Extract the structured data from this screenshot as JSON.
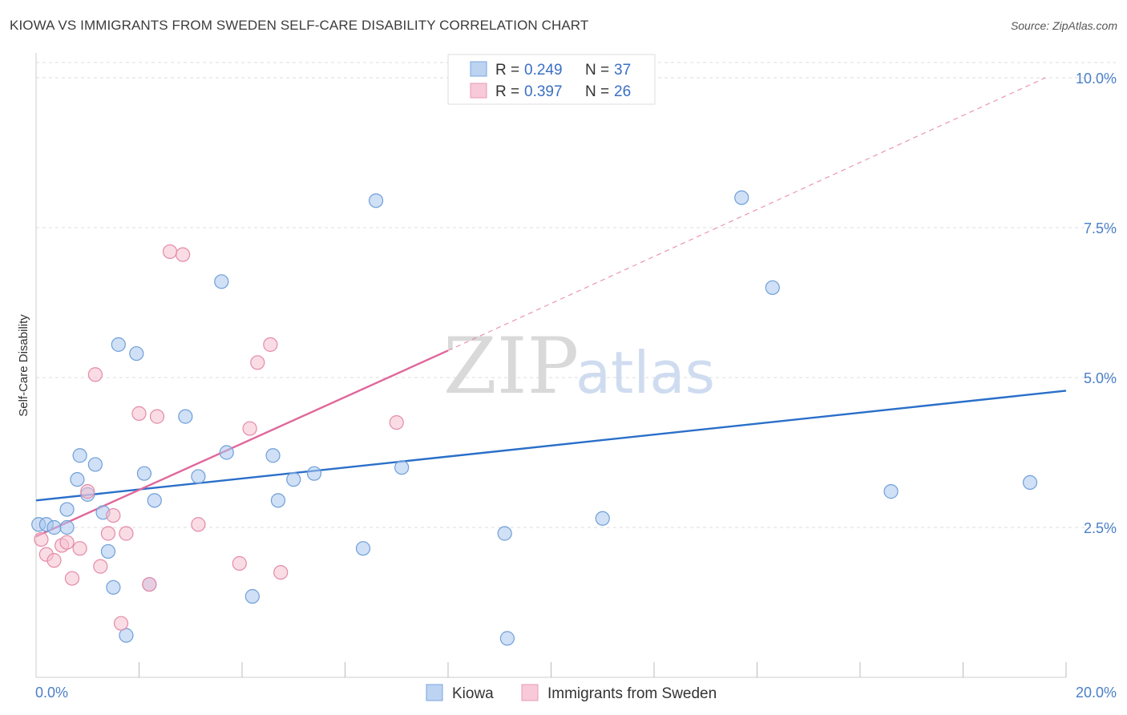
{
  "title": "KIOWA VS IMMIGRANTS FROM SWEDEN SELF-CARE DISABILITY CORRELATION CHART",
  "source": "Source: ZipAtlas.com",
  "watermark": {
    "zip": "ZIP",
    "atlas": "atlas"
  },
  "chart_data": {
    "type": "scatter",
    "title": "KIOWA VS IMMIGRANTS FROM SWEDEN SELF-CARE DISABILITY CORRELATION CHART",
    "xlabel": "",
    "ylabel": "Self-Care Disability",
    "xlim": [
      0,
      20
    ],
    "ylim": [
      0,
      10.5
    ],
    "x_tick_labels": [
      {
        "v": 0,
        "label": "0.0%"
      },
      {
        "v": 20,
        "label": "20.0%"
      }
    ],
    "y_tick_labels": [
      {
        "v": 2.5,
        "label": "2.5%"
      },
      {
        "v": 5,
        "label": "5.0%"
      },
      {
        "v": 7.5,
        "label": "7.5%"
      },
      {
        "v": 10,
        "label": "10.0%"
      }
    ],
    "x_minor_ticks": [
      2,
      4,
      6,
      8,
      10,
      12,
      14,
      16,
      18,
      20
    ],
    "legend": [
      {
        "r_label": "R =",
        "r_value": "0.249",
        "n_label": "N =",
        "n_value": "37"
      },
      {
        "r_label": "R =",
        "r_value": "0.397",
        "n_label": "N =",
        "n_value": "26"
      }
    ],
    "series": [
      {
        "name": "Kiowa",
        "color": "#a9c7ee",
        "edge": "#6f9fd8",
        "trend_color": "#2a6fc9",
        "trend": {
          "x0": 0,
          "y0": 2.95,
          "x1": 20,
          "y1": 4.78,
          "dash_to": null
        },
        "points": [
          [
            0.05,
            2.55
          ],
          [
            0.2,
            2.55
          ],
          [
            0.35,
            2.5
          ],
          [
            0.6,
            2.5
          ],
          [
            0.6,
            2.8
          ],
          [
            0.8,
            3.3
          ],
          [
            0.85,
            3.7
          ],
          [
            1.0,
            3.05
          ],
          [
            1.15,
            3.55
          ],
          [
            1.3,
            2.75
          ],
          [
            1.4,
            2.1
          ],
          [
            1.5,
            1.5
          ],
          [
            1.6,
            5.55
          ],
          [
            1.75,
            0.7
          ],
          [
            1.95,
            5.4
          ],
          [
            2.1,
            3.4
          ],
          [
            2.2,
            1.55
          ],
          [
            2.3,
            2.95
          ],
          [
            2.9,
            4.35
          ],
          [
            3.15,
            3.35
          ],
          [
            3.6,
            6.6
          ],
          [
            3.7,
            3.75
          ],
          [
            4.2,
            1.35
          ],
          [
            4.6,
            3.7
          ],
          [
            4.7,
            2.95
          ],
          [
            5.0,
            3.3
          ],
          [
            5.4,
            3.4
          ],
          [
            6.35,
            2.15
          ],
          [
            6.6,
            7.95
          ],
          [
            7.1,
            3.5
          ],
          [
            9.1,
            2.4
          ],
          [
            9.15,
            0.65
          ],
          [
            11.0,
            2.65
          ],
          [
            13.7,
            8.0
          ],
          [
            14.3,
            6.5
          ],
          [
            16.6,
            3.1
          ],
          [
            19.3,
            3.25
          ]
        ]
      },
      {
        "name": "Immigrants from Sweden",
        "color": "#f6bfd0",
        "edge": "#e48aa8",
        "trend_color": "#e0679a",
        "trend": {
          "x0": 0,
          "y0": 2.35,
          "x1": 8.0,
          "y1": 5.45,
          "dash_to": {
            "x": 19.6,
            "y": 10.0
          }
        },
        "points": [
          [
            0.1,
            2.3
          ],
          [
            0.2,
            2.05
          ],
          [
            0.35,
            1.95
          ],
          [
            0.5,
            2.2
          ],
          [
            0.6,
            2.25
          ],
          [
            0.7,
            1.65
          ],
          [
            0.85,
            2.15
          ],
          [
            1.0,
            3.1
          ],
          [
            1.15,
            5.05
          ],
          [
            1.25,
            1.85
          ],
          [
            1.4,
            2.4
          ],
          [
            1.5,
            2.7
          ],
          [
            1.65,
            0.9
          ],
          [
            1.75,
            2.4
          ],
          [
            2.0,
            4.4
          ],
          [
            2.2,
            1.55
          ],
          [
            2.35,
            4.35
          ],
          [
            2.6,
            7.1
          ],
          [
            2.85,
            7.05
          ],
          [
            3.15,
            2.55
          ],
          [
            3.95,
            1.9
          ],
          [
            4.15,
            4.15
          ],
          [
            4.3,
            5.25
          ],
          [
            4.55,
            5.55
          ],
          [
            4.75,
            1.75
          ],
          [
            7.0,
            4.25
          ]
        ]
      }
    ]
  }
}
